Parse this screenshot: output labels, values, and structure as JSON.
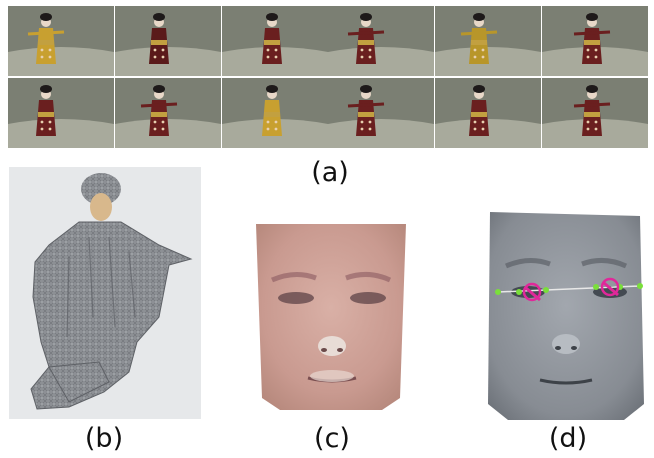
{
  "figure": {
    "labels": {
      "a": "(a)",
      "b": "(b)",
      "c": "(c)",
      "d": "(d)"
    }
  },
  "panel_a": {
    "rows": [
      {
        "frames": [
          {
            "robe": "#c8a030",
            "pose": "side"
          },
          {
            "robe": "#5a1a1a",
            "pose": "back"
          },
          {
            "robe": "#6a1f1f",
            "pose": "front"
          },
          {
            "robe": "#6a1f1f",
            "pose": "arms"
          },
          {
            "robe": "#b8962a",
            "pose": "side"
          },
          {
            "robe": "#6a1f1f",
            "pose": "arms"
          }
        ]
      },
      {
        "frames": [
          {
            "robe": "#6a1f1f",
            "pose": "front"
          },
          {
            "robe": "#6a1f1f",
            "pose": "arms"
          },
          {
            "robe": "#c8a030",
            "pose": "back"
          },
          {
            "robe": "#6a1f1f",
            "pose": "arms"
          },
          {
            "robe": "#6a1f1f",
            "pose": "front"
          },
          {
            "robe": "#6a1f1f",
            "pose": "arms"
          }
        ]
      }
    ]
  },
  "colors": {
    "studio_wall": "#7b7f73",
    "studio_floor": "#a8aa9c",
    "mesh": "#8a8d92",
    "face_skin": "#cfa39a",
    "face_gray": "#8c9198",
    "landmark_green": "#7adf3a",
    "landmark_magenta": "#e0289a"
  }
}
